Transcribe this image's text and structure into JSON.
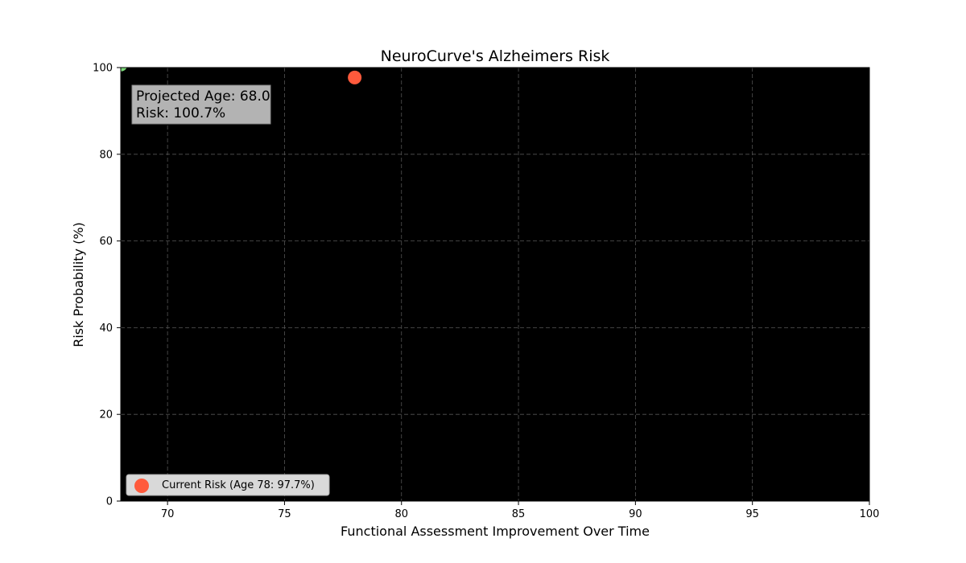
{
  "chart_data": {
    "type": "scatter",
    "title": "NeuroCurve's Alzheimers Risk",
    "xlabel": "Functional Assessment Improvement Over Time",
    "ylabel": "Risk Probability (%)",
    "xlim": [
      68,
      100
    ],
    "ylim": [
      0,
      100
    ],
    "xticks": [
      70,
      75,
      80,
      85,
      90,
      95,
      100
    ],
    "yticks": [
      0,
      20,
      40,
      60,
      80,
      100
    ],
    "grid": true,
    "background": "#000000",
    "grid_color": "#555555",
    "series": [
      {
        "name": "Current Risk (Age 78: 97.7%)",
        "color": "#ff5a3c",
        "points": [
          {
            "x": 78,
            "y": 97.7
          }
        ]
      },
      {
        "color": "#7ddc7a",
        "points": [
          {
            "x": 68,
            "y": 100.7
          }
        ]
      }
    ],
    "annotation": {
      "line1": "Projected Age: 68.0",
      "line2": "Risk: 100.7%",
      "background": "#b3b3b3"
    },
    "legend": {
      "placement": "lower-left",
      "background": "#d9d9d9"
    }
  }
}
